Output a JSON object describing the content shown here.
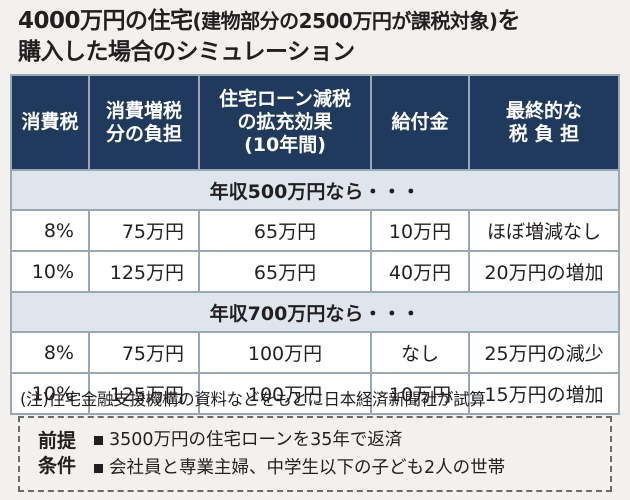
{
  "title": {
    "line1_a": "4000万円の住宅",
    "line1_paren": "(建物部分の2500万円が課税対象)",
    "line1_b": "を",
    "line2": "購入した場合のシミュレーション"
  },
  "table": {
    "headers": [
      "消費税",
      "消費増税\n分の負担",
      "住宅ローン減税\nの拡充効果\n(10年間)",
      "給付金",
      "最終的な\n税 負 担"
    ],
    "groups": [
      {
        "label": "年収500万円なら・・・",
        "rows": [
          [
            "8%",
            "75万円",
            "65万円",
            "10万円",
            "ほぼ増減なし"
          ],
          [
            "10%",
            "125万円",
            "65万円",
            "40万円",
            "20万円の増加"
          ]
        ]
      },
      {
        "label": "年収700万円なら・・・",
        "rows": [
          [
            "8%",
            "75万円",
            "100万円",
            "なし",
            "25万円の減少"
          ],
          [
            "10%",
            "125万円",
            "100万円",
            "10万円",
            "15万円の増加"
          ]
        ]
      }
    ]
  },
  "note": "(注)住宅金融支援機構の資料などをもとに日本経済新聞社が試算",
  "conditions": {
    "label": "前提\n条件",
    "items": [
      "3500万円の住宅ローンを35年で返済",
      "会社員と専業主婦、中学生以下の子ども2人の世帯"
    ]
  }
}
